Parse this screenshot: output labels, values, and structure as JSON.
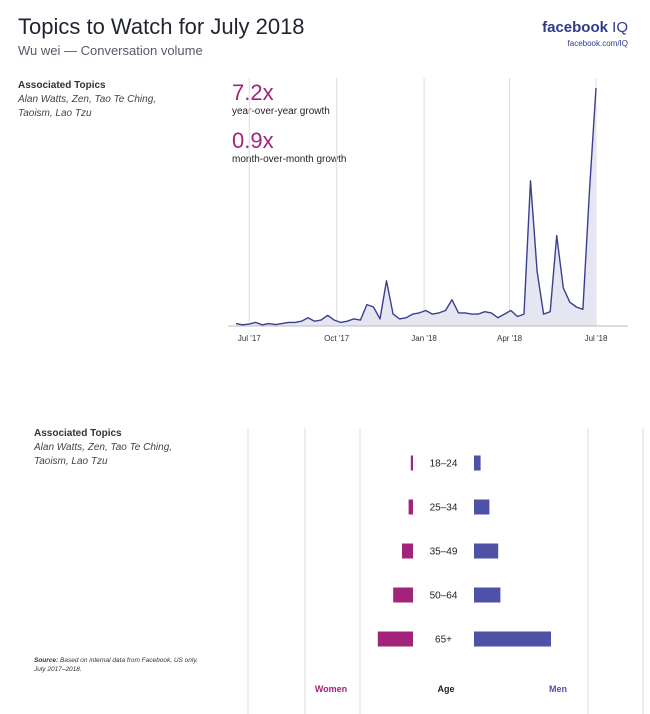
{
  "header": {
    "title": "Topics to Watch for July 2018",
    "subtitle": "Wu wei — Conversation volume",
    "brand_main": "facebook",
    "brand_iq": "IQ",
    "brand_url": "facebook.com/IQ"
  },
  "associated": {
    "heading": "Associated Topics",
    "topics": "Alan Watts, Zen, Tao Te Ching, Taoism, Lao Tzu"
  },
  "metrics": {
    "yoy_value": "7.2x",
    "yoy_label": "year-over-year growth",
    "mom_value": "0.9x",
    "mom_label": "month-over-month growth"
  },
  "source": {
    "label": "Source:",
    "text": "Based on internal data from Facebook, US only. July 2017–2018."
  },
  "colors": {
    "line": "#3a3f8f",
    "area": "#e6e6f2",
    "women": "#a2247a",
    "men": "#4e52a6",
    "grid": "#dcdcdc"
  },
  "chart_data": [
    {
      "type": "area",
      "x_tick_labels": [
        "Jul '17",
        "Oct '17",
        "Jan '18",
        "Apr '18",
        "Jul '18"
      ],
      "x_range": [
        "2017-07-01",
        "2018-07-15"
      ],
      "y_range": [
        0,
        100
      ],
      "y_axis_shown": false,
      "grid": "vertical",
      "series": [
        {
          "values": [
            1,
            0.5,
            0.8,
            1.5,
            0.5,
            1,
            0.6,
            1,
            1.5,
            1.5,
            2,
            3.5,
            2,
            2.5,
            4.5,
            2.5,
            1.5,
            2,
            3,
            2.5,
            9,
            8,
            3,
            19,
            5,
            3,
            3.5,
            5,
            5.5,
            6.5,
            5,
            5.5,
            6.5,
            11,
            5.5,
            5.5,
            5,
            5,
            6,
            5.5,
            3.5,
            5,
            6.5,
            4,
            5,
            61,
            23,
            5,
            6,
            38,
            16,
            10,
            8,
            7,
            57,
            100
          ]
        }
      ]
    },
    {
      "type": "bar",
      "orientation": "horizontal",
      "center_label": "Age",
      "categories": [
        "18–24",
        "25–34",
        "35–49",
        "50–64",
        "65+"
      ],
      "series": [
        {
          "name": "Women",
          "values": [
            1,
            2,
            5,
            9,
            16
          ]
        },
        {
          "name": "Men",
          "values": [
            3,
            7,
            11,
            12,
            35
          ]
        }
      ],
      "x_range": [
        0,
        100
      ],
      "grid": "vertical"
    }
  ]
}
